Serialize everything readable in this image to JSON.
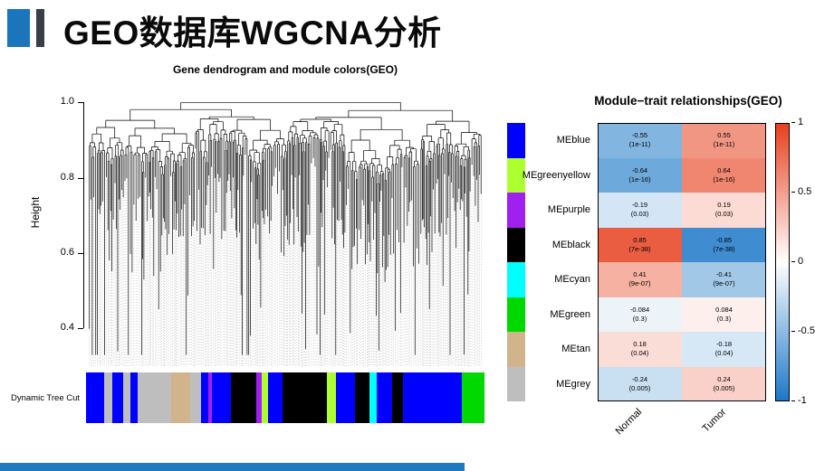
{
  "slide": {
    "title": "GEO数据库WGCNA分析",
    "accent_color": "#1B75BC",
    "accent_bar_color": "#3A3F47",
    "bottom_strip_color": "#1E79BE"
  },
  "chart_data": [
    {
      "type": "dendrogram",
      "title": "Gene dendrogram and module colors(GEO)",
      "ylabel": "Height",
      "ylim": [
        0.3,
        1.02
      ],
      "yticks": [
        1.0,
        0.8,
        0.6,
        0.4
      ],
      "ytick_labels": [
        "1.0",
        "0.8",
        "0.6",
        "0.4"
      ],
      "band_label": "Dynamic Tree Cut",
      "band_segments": [
        {
          "color": "#0000FF",
          "w": 5
        },
        {
          "color": "#BEBEBE",
          "w": 2
        },
        {
          "color": "#0000FF",
          "w": 3
        },
        {
          "color": "#BEBEBE",
          "w": 2
        },
        {
          "color": "#0000FF",
          "w": 2
        },
        {
          "color": "#BEBEBE",
          "w": 9
        },
        {
          "color": "#D2B48C",
          "w": 5
        },
        {
          "color": "#BEBEBE",
          "w": 3
        },
        {
          "color": "#0000FF",
          "w": 2
        },
        {
          "color": "#A020F0",
          "w": 1
        },
        {
          "color": "#0000FF",
          "w": 5
        },
        {
          "color": "#000000",
          "w": 7
        },
        {
          "color": "#A020F0",
          "w": 1.5
        },
        {
          "color": "#ADFF2F",
          "w": 1.5
        },
        {
          "color": "#0000FF",
          "w": 4
        },
        {
          "color": "#000000",
          "w": 12
        },
        {
          "color": "#ADFF2F",
          "w": 2.5
        },
        {
          "color": "#0000FF",
          "w": 5
        },
        {
          "color": "#000000",
          "w": 4
        },
        {
          "color": "#00FFFF",
          "w": 2
        },
        {
          "color": "#0000FF",
          "w": 4
        },
        {
          "color": "#000000",
          "w": 3
        },
        {
          "color": "#0000FF",
          "w": 16
        },
        {
          "color": "#00D900",
          "w": 6
        }
      ]
    },
    {
      "type": "heatmap",
      "title": "Module−trait relationships(GEO)",
      "columns": [
        "Normal",
        "Tumor"
      ],
      "rows": [
        {
          "module": "MEblue",
          "color": "#0000FF",
          "cells": [
            {
              "corr": -0.55,
              "p": "(1e-11)"
            },
            {
              "corr": 0.55,
              "p": "(1e-11)"
            }
          ]
        },
        {
          "module": "MEgreenyellow",
          "color": "#ADFF2F",
          "cells": [
            {
              "corr": -0.64,
              "p": "(1e-16)"
            },
            {
              "corr": 0.64,
              "p": "(1e-16)"
            }
          ]
        },
        {
          "module": "MEpurple",
          "color": "#A020F0",
          "cells": [
            {
              "corr": -0.19,
              "p": "(0.03)"
            },
            {
              "corr": 0.19,
              "p": "(0.03)"
            }
          ]
        },
        {
          "module": "MEblack",
          "color": "#000000",
          "cells": [
            {
              "corr": 0.85,
              "p": "(7e-38)"
            },
            {
              "corr": -0.85,
              "p": "(7e-38)"
            }
          ]
        },
        {
          "module": "MEcyan",
          "color": "#00FFFF",
          "cells": [
            {
              "corr": 0.41,
              "p": "(9e-07)"
            },
            {
              "corr": -0.41,
              "p": "(9e-07)"
            }
          ]
        },
        {
          "module": "MEgreen",
          "color": "#00D900",
          "cells": [
            {
              "corr": -0.084,
              "p": "(0.3)"
            },
            {
              "corr": 0.084,
              "p": "(0.3)"
            }
          ]
        },
        {
          "module": "MEtan",
          "color": "#D2B48C",
          "cells": [
            {
              "corr": 0.18,
              "p": "(0.04)"
            },
            {
              "corr": -0.18,
              "p": "(0.04)"
            }
          ]
        },
        {
          "module": "MEgrey",
          "color": "#BEBEBE",
          "cells": [
            {
              "corr": -0.24,
              "p": "(0.005)"
            },
            {
              "corr": 0.24,
              "p": "(0.005)"
            }
          ]
        }
      ],
      "colorbar": {
        "tick_labels": [
          "1",
          "0.5",
          "0",
          "-0.5",
          "-1"
        ],
        "positive_color": "#E8401F",
        "zero_color": "#FFFFFF",
        "negative_color": "#1D78C8"
      }
    }
  ]
}
